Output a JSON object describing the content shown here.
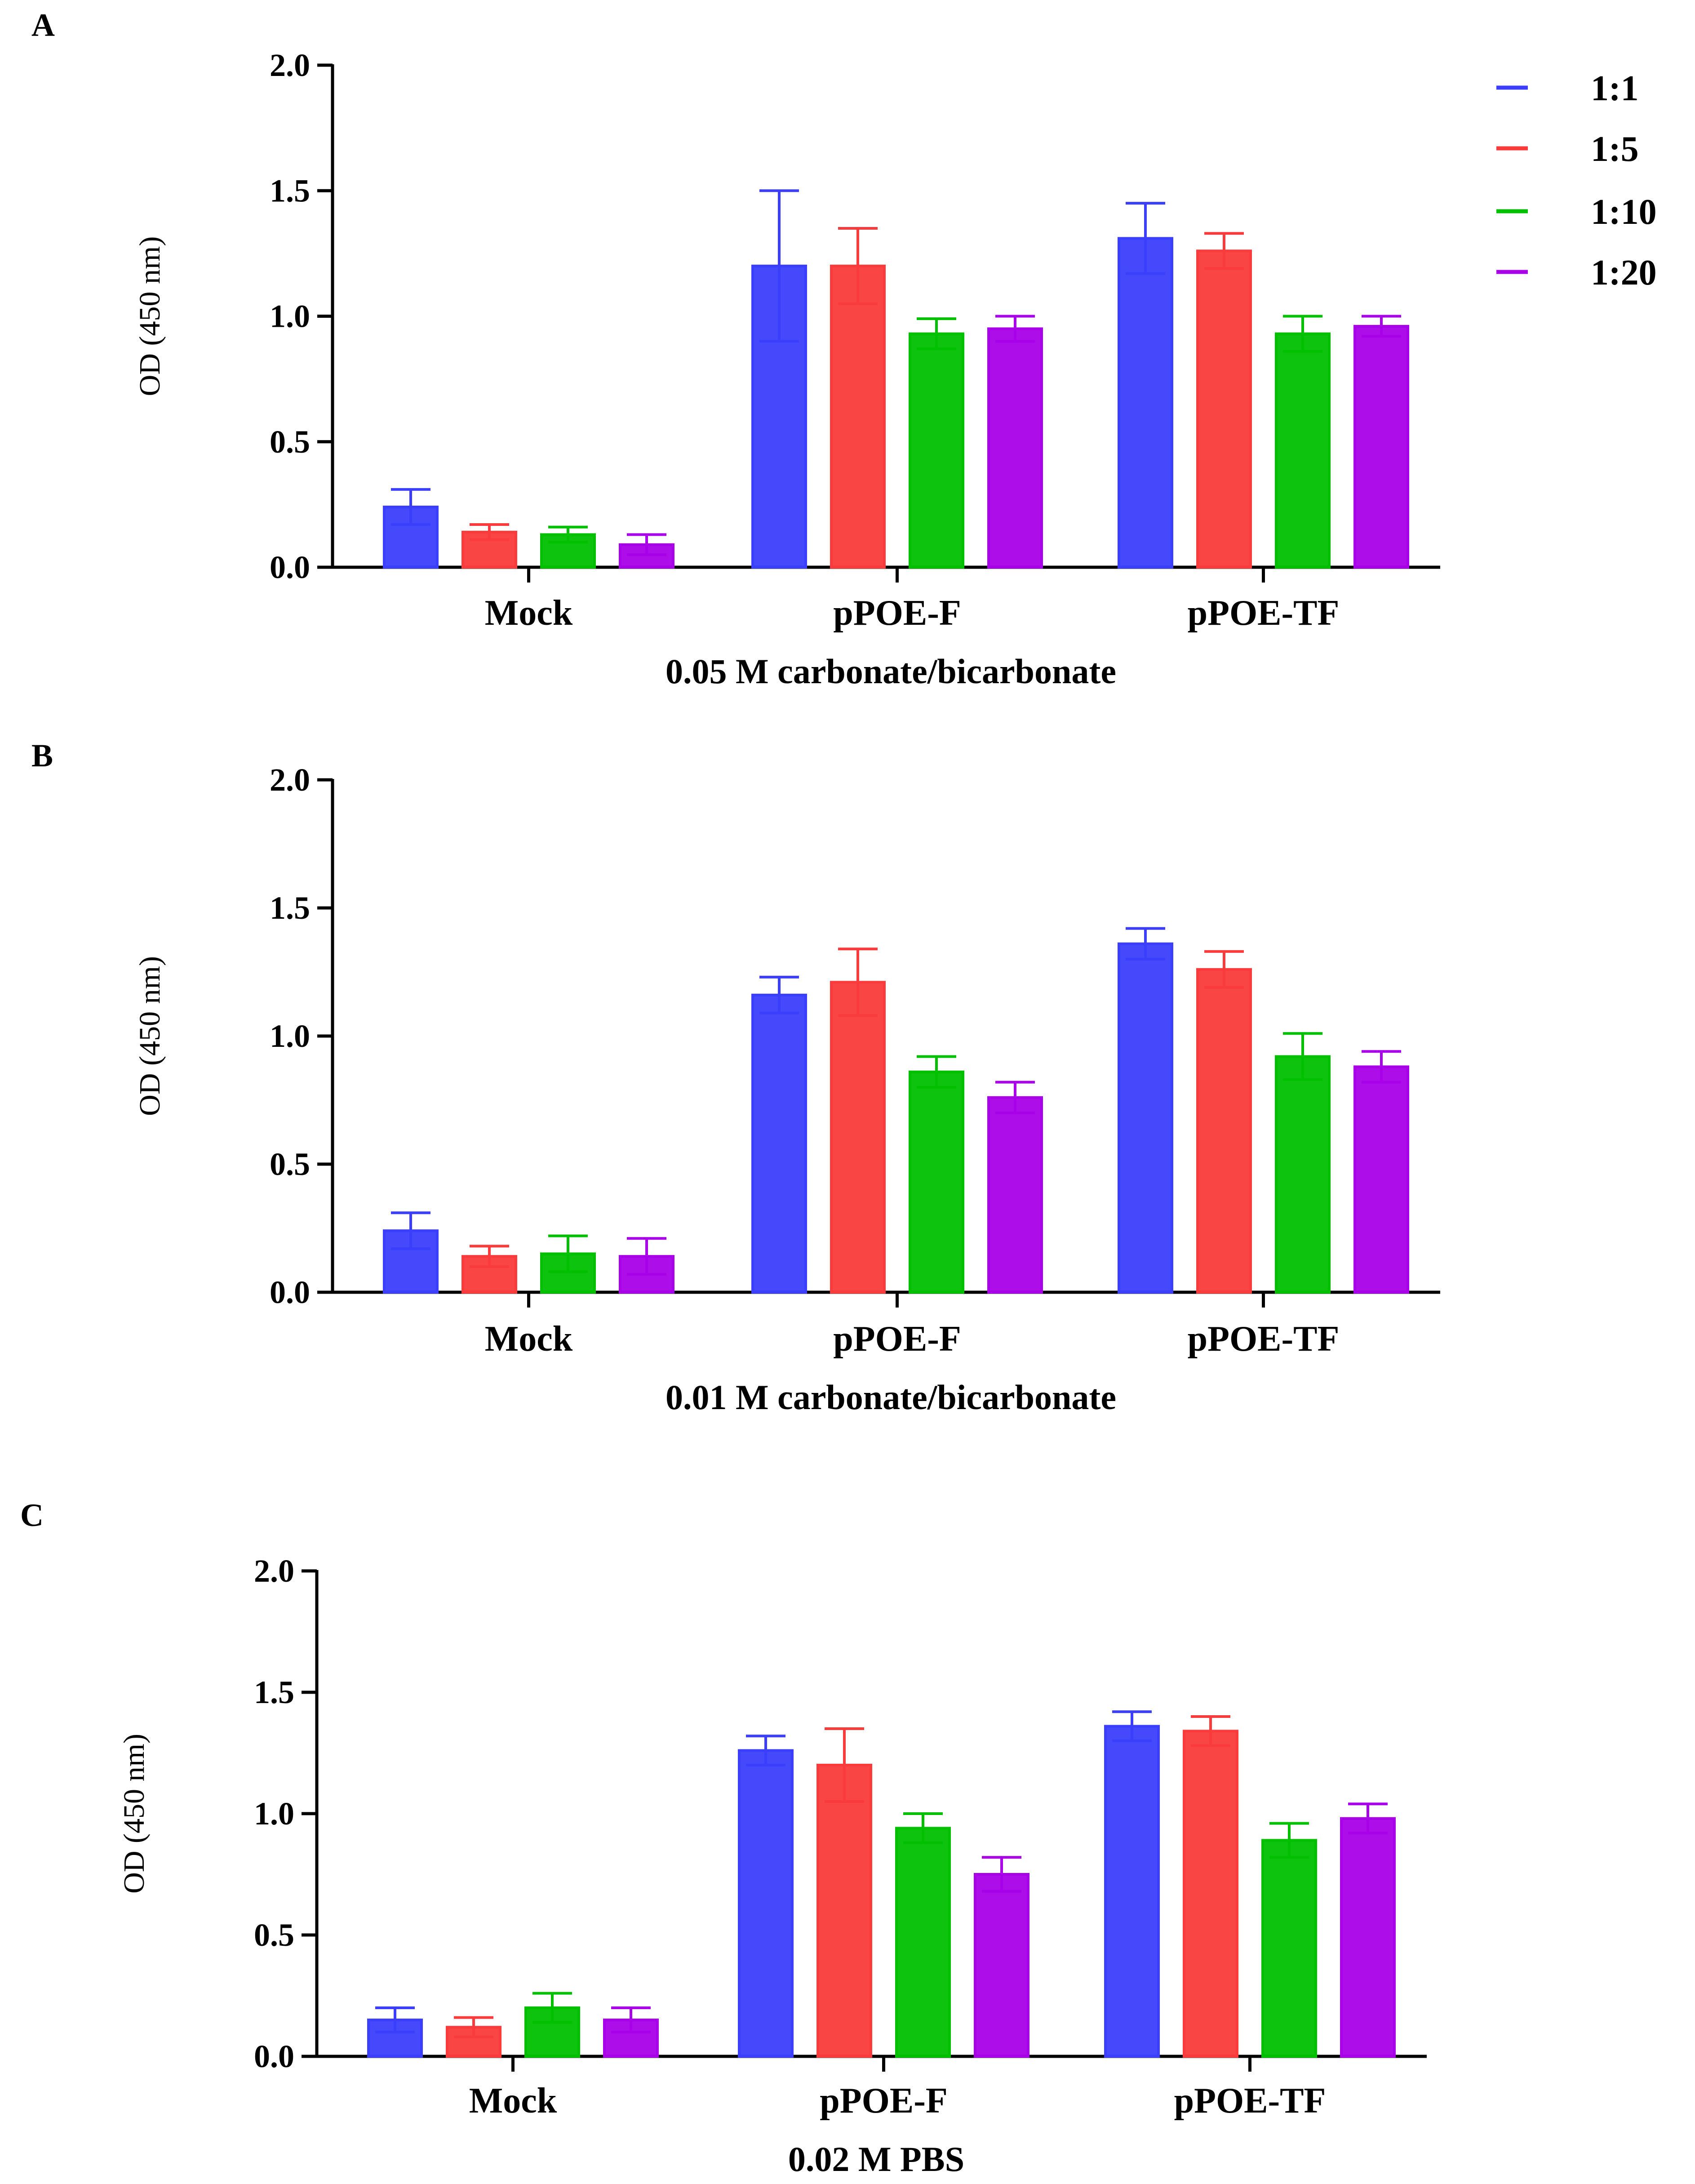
{
  "colors": {
    "1:1": "#3b3ffb",
    "1:5": "#fa3b3b",
    "1:10": "#00c000",
    "1:20": "#a800e8"
  },
  "legend": {
    "items": [
      "1:1",
      "1:5",
      "1:10",
      "1:20"
    ]
  },
  "chart_data": [
    {
      "panel": "A",
      "type": "bar",
      "title": "",
      "xlabel": "0.05 M carbonate/bicarbonate",
      "ylabel": "OD (450 nm)",
      "ylim": [
        0,
        2.0
      ],
      "yticks": [
        "0.0",
        "0.5",
        "1.0",
        "1.5",
        "2.0"
      ],
      "categories": [
        "Mock",
        "pPOE-F",
        "pPOE-TF"
      ],
      "series": [
        {
          "name": "1:1",
          "values": [
            0.24,
            1.2,
            1.31
          ],
          "errors": [
            0.07,
            0.3,
            0.14
          ]
        },
        {
          "name": "1:5",
          "values": [
            0.14,
            1.2,
            1.26
          ],
          "errors": [
            0.03,
            0.15,
            0.07
          ]
        },
        {
          "name": "1:10",
          "values": [
            0.13,
            0.93,
            0.93
          ],
          "errors": [
            0.03,
            0.06,
            0.07
          ]
        },
        {
          "name": "1:20",
          "values": [
            0.09,
            0.95,
            0.96
          ],
          "errors": [
            0.04,
            0.05,
            0.04
          ]
        }
      ]
    },
    {
      "panel": "B",
      "type": "bar",
      "title": "",
      "xlabel": "0.01 M carbonate/bicarbonate",
      "ylabel": "OD (450 nm)",
      "ylim": [
        0,
        2.0
      ],
      "yticks": [
        "0.0",
        "0.5",
        "1.0",
        "1.5",
        "2.0"
      ],
      "categories": [
        "Mock",
        "pPOE-F",
        "pPOE-TF"
      ],
      "series": [
        {
          "name": "1:1",
          "values": [
            0.24,
            1.16,
            1.36
          ],
          "errors": [
            0.07,
            0.07,
            0.06
          ]
        },
        {
          "name": "1:5",
          "values": [
            0.14,
            1.21,
            1.26
          ],
          "errors": [
            0.04,
            0.13,
            0.07
          ]
        },
        {
          "name": "1:10",
          "values": [
            0.15,
            0.86,
            0.92
          ],
          "errors": [
            0.07,
            0.06,
            0.09
          ]
        },
        {
          "name": "1:20",
          "values": [
            0.14,
            0.76,
            0.88
          ],
          "errors": [
            0.07,
            0.06,
            0.06
          ]
        }
      ]
    },
    {
      "panel": "C",
      "type": "bar",
      "title": "",
      "xlabel": "0.02 M PBS",
      "ylabel": "OD (450 nm)",
      "ylim": [
        0,
        2.0
      ],
      "yticks": [
        "0.0",
        "0.5",
        "1.0",
        "1.5",
        "2.0"
      ],
      "categories": [
        "Mock",
        "pPOE-F",
        "pPOE-TF"
      ],
      "series": [
        {
          "name": "1:1",
          "values": [
            0.15,
            1.26,
            1.36
          ],
          "errors": [
            0.05,
            0.06,
            0.06
          ]
        },
        {
          "name": "1:5",
          "values": [
            0.12,
            1.2,
            1.34
          ],
          "errors": [
            0.04,
            0.15,
            0.06
          ]
        },
        {
          "name": "1:10",
          "values": [
            0.2,
            0.94,
            0.89
          ],
          "errors": [
            0.06,
            0.06,
            0.07
          ]
        },
        {
          "name": "1:20",
          "values": [
            0.15,
            0.75,
            0.98
          ],
          "errors": [
            0.05,
            0.07,
            0.06
          ]
        }
      ]
    }
  ]
}
